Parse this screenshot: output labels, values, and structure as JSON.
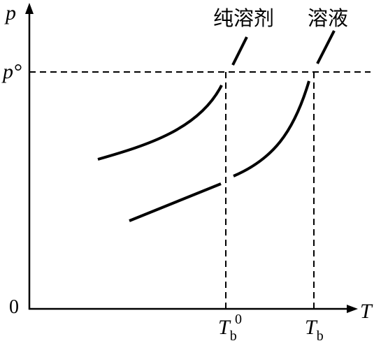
{
  "y_axis": {
    "label": "p",
    "ticks": [
      {
        "label": "p°"
      },
      {
        "label": "0"
      }
    ]
  },
  "x_axis": {
    "label": "T",
    "ticks": [
      {
        "main": "T",
        "sub": "b",
        "sup": "0"
      },
      {
        "main": "T",
        "sub": "b"
      }
    ]
  },
  "curves": [
    {
      "label": "纯溶剂"
    },
    {
      "label": "溶液"
    }
  ]
}
